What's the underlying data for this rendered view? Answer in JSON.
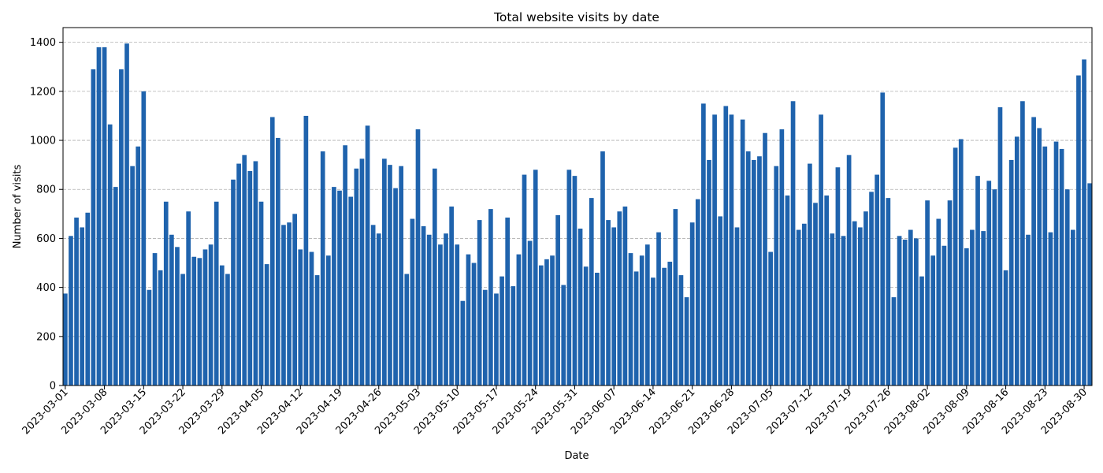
{
  "chart_data": {
    "type": "bar",
    "title": "Total website visits by date",
    "xlabel": "Date",
    "ylabel": "Number of visits",
    "ylim": [
      0,
      1460
    ],
    "y_ticks": [
      0,
      200,
      400,
      600,
      800,
      1000,
      1200,
      1400
    ],
    "grid": "y-dashed",
    "bar_color": "#1f63ad",
    "start_date": "2023-03-01",
    "x_tick_labels": [
      "2023-03-01",
      "2023-03-08",
      "2023-03-15",
      "2023-03-22",
      "2023-03-29",
      "2023-04-05",
      "2023-04-12",
      "2023-04-19",
      "2023-04-26",
      "2023-05-03",
      "2023-05-10",
      "2023-05-17",
      "2023-05-24",
      "2023-05-31",
      "2023-06-07",
      "2023-06-14",
      "2023-06-21",
      "2023-06-28",
      "2023-07-05",
      "2023-07-12",
      "2023-07-19",
      "2023-07-26",
      "2023-08-02",
      "2023-08-09",
      "2023-08-16",
      "2023-08-23",
      "2023-08-30"
    ],
    "values": [
      375,
      610,
      685,
      645,
      705,
      1290,
      1380,
      1380,
      1065,
      810,
      1290,
      1395,
      895,
      975,
      1200,
      390,
      540,
      470,
      750,
      615,
      565,
      455,
      710,
      525,
      520,
      555,
      575,
      750,
      490,
      455,
      840,
      905,
      940,
      875,
      915,
      750,
      495,
      1095,
      1010,
      655,
      665,
      700,
      555,
      1100,
      545,
      450,
      955,
      530,
      810,
      795,
      980,
      770,
      885,
      925,
      1060,
      655,
      620,
      925,
      900,
      805,
      895,
      455,
      680,
      1045,
      650,
      615,
      885,
      575,
      620,
      730,
      575,
      345,
      535,
      500,
      675,
      390,
      720,
      375,
      445,
      685,
      405,
      535,
      860,
      590,
      880,
      490,
      515,
      530,
      695,
      410,
      880,
      855,
      640,
      485,
      765,
      460,
      955,
      675,
      645,
      710,
      730,
      540,
      465,
      530,
      575,
      440,
      625,
      480,
      505,
      720,
      450,
      360,
      665,
      760,
      1150,
      920,
      1105,
      690,
      1140,
      1105,
      645,
      1085,
      955,
      920,
      935,
      1030,
      545,
      895,
      1045,
      775,
      1160,
      635,
      660,
      905,
      745,
      1105,
      775,
      620,
      890,
      610,
      940,
      670,
      645,
      710,
      790,
      860,
      1195,
      765,
      360,
      610,
      595,
      635,
      600,
      445,
      755,
      530,
      680,
      570,
      755,
      970,
      1005,
      560,
      635,
      855,
      630,
      835,
      800,
      1135,
      470,
      920,
      1015,
      1160,
      615,
      1095,
      1050,
      975,
      625,
      995,
      965,
      800,
      635,
      1265,
      1330,
      825
    ]
  }
}
